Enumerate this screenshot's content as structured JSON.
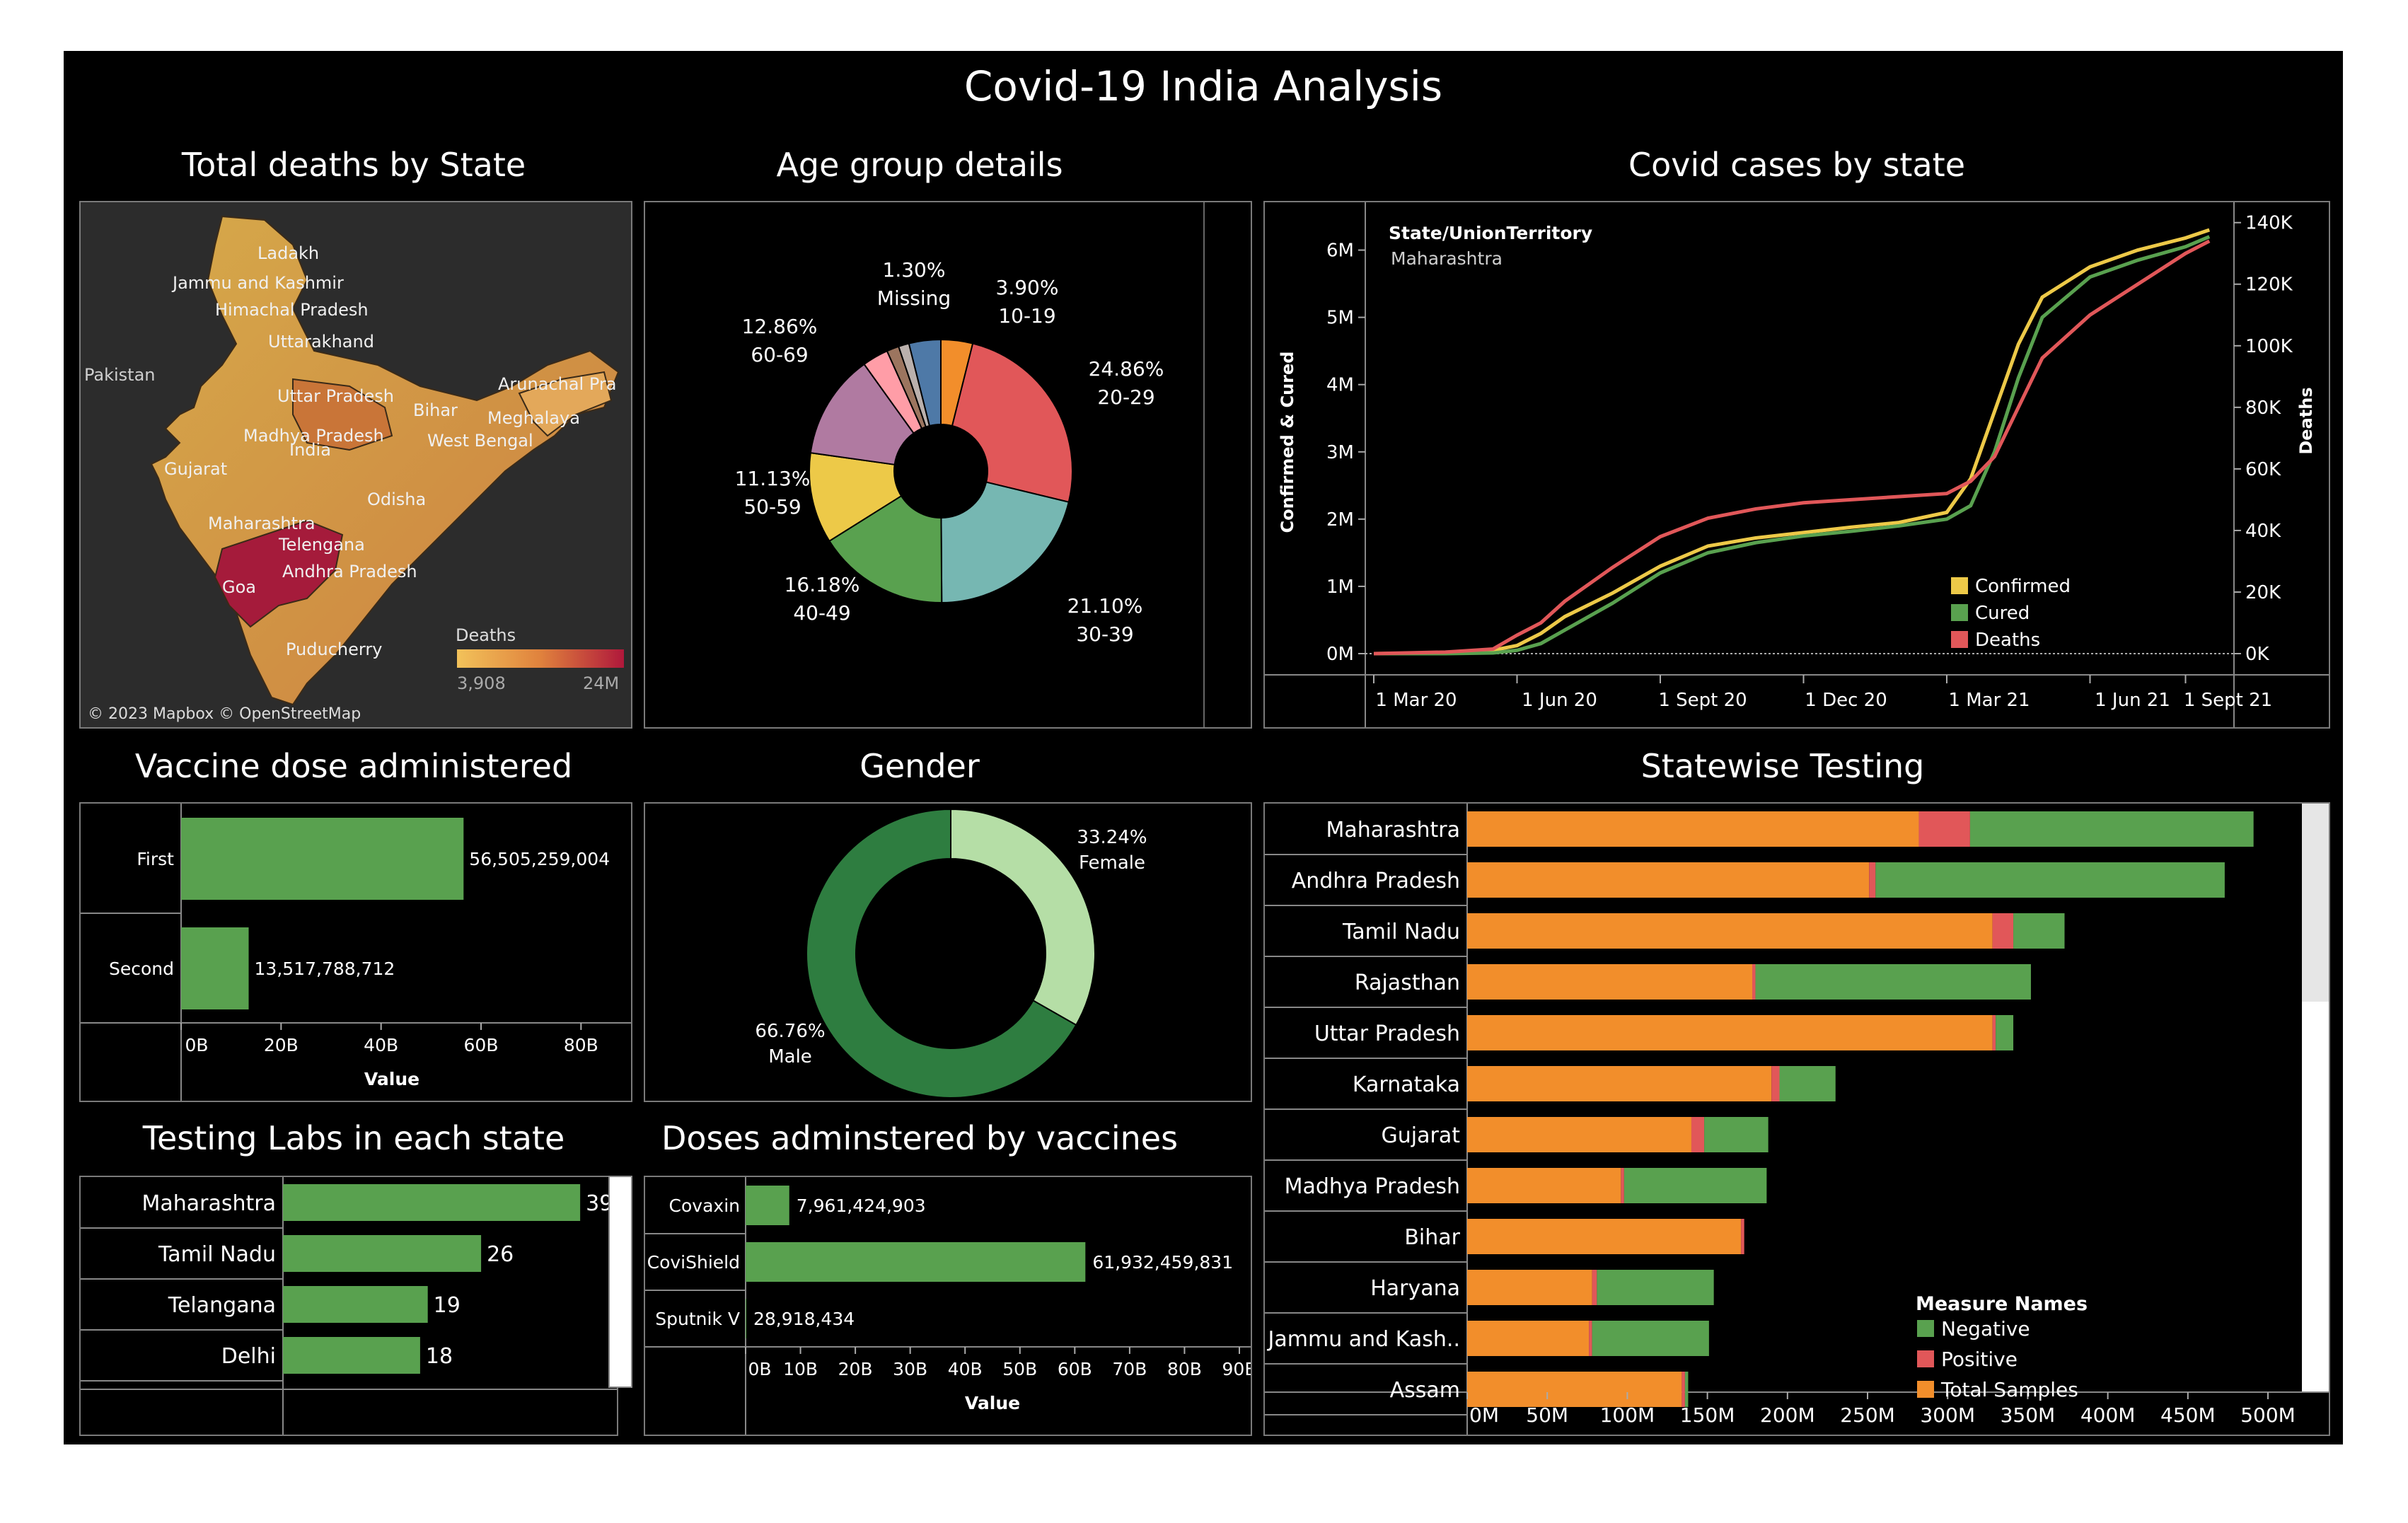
{
  "dashboard_title": "Covid-19 India Analysis",
  "titles": {
    "map": "Total deaths by State",
    "age": "Age group details",
    "cases": "Covid cases by state",
    "vaccine": "Vaccine dose administered",
    "gender": "Gender",
    "testing": "Statewise Testing",
    "labs": "Testing Labs in each state",
    "doses": "Doses adminstered by vaccines"
  },
  "map": {
    "states": [
      "Ladakh",
      "Jammu and Kashmir",
      "Himachal Pradesh",
      "Uttarakhand",
      "Uttar Pradesh",
      "Bihar",
      "Madhya Pradesh",
      "India",
      "Gujarat",
      "Maharashtra",
      "Telengana",
      "Andhra Pradesh",
      "Goa",
      "Puducherry",
      "Odisha",
      "West Bengal",
      "Meghalaya",
      "Arunachal Pra"
    ],
    "country_label": "Pakistan",
    "legend_title": "Deaths",
    "legend_min": "3,908",
    "legend_max": "24M",
    "credit": "© 2023 Mapbox © OpenStreetMap",
    "colors": {
      "low": "#f2c25a",
      "mid": "#e0823d",
      "high": "#b0183b"
    }
  },
  "cases_header": {
    "field": "State/UnionTerritory",
    "value": "Maharashtra"
  },
  "chart_data": [
    {
      "id": "age_group",
      "type": "pie",
      "labels": [
        "10-19",
        "20-29",
        "30-39",
        "40-49",
        "50-59",
        "60-69",
        "Missing"
      ],
      "slices": [
        {
          "value_label": "3.90%",
          "label": "10-19",
          "value": 3.9,
          "color": "#f28e2b"
        },
        {
          "value_label": "24.86%",
          "label": "20-29",
          "value": 24.86,
          "color": "#e15759"
        },
        {
          "value_label": "21.10%",
          "label": "30-39",
          "value": 21.1,
          "color": "#76b7b2"
        },
        {
          "value_label": "16.18%",
          "label": "40-49",
          "value": 16.18,
          "color": "#59a14f"
        },
        {
          "value_label": "11.13%",
          "label": "50-59",
          "value": 11.13,
          "color": "#edc948"
        },
        {
          "value_label": "12.86%",
          "label": "60-69",
          "value": 12.86,
          "color": "#b07aa1"
        },
        {
          "value_label": "",
          "label": "",
          "value": 3.2,
          "color": "#ff9da7"
        },
        {
          "value_label": "",
          "label": "",
          "value": 1.5,
          "color": "#9c755f"
        },
        {
          "value_label": "1.30%",
          "label": "Missing",
          "value": 1.3,
          "color": "#bab0ac"
        },
        {
          "value_label": "",
          "label": "",
          "value": 3.9,
          "color": "#4e79a7"
        }
      ]
    },
    {
      "id": "gender",
      "type": "pie",
      "slices": [
        {
          "value_label": "33.24%",
          "label": "Female",
          "value": 33.24,
          "color": "#b5dea6"
        },
        {
          "value_label": "66.76%",
          "label": "Male",
          "value": 66.76,
          "color": "#2e7d40"
        }
      ]
    },
    {
      "id": "cases",
      "type": "line",
      "x_ticks": [
        "1 Mar 20",
        "1 Jun 20",
        "1 Sept 20",
        "1 Dec 20",
        "1 Mar 21",
        "1 Jun 21",
        "1 Sept 21"
      ],
      "y_ticks": [
        "0M",
        "1M",
        "2M",
        "3M",
        "4M",
        "5M",
        "6M"
      ],
      "y2_ticks": [
        "0K",
        "20K",
        "40K",
        "60K",
        "80K",
        "100K",
        "120K",
        "140K"
      ],
      "ylabel": "Confirmed & Cured",
      "y2label": "Deaths",
      "ylim": [
        0,
        6.5
      ],
      "y2lim": [
        0,
        142
      ],
      "series": [
        {
          "name": "Confirmed",
          "color": "#edc948",
          "axis": "left",
          "x": [
            0,
            1.5,
            2.5,
            3,
            3.5,
            4,
            5,
            6,
            7,
            8,
            9,
            10,
            11,
            12,
            12.5,
            13,
            13.5,
            14,
            15,
            16,
            17,
            17.5
          ],
          "y": [
            0,
            0.01,
            0.05,
            0.12,
            0.3,
            0.55,
            0.9,
            1.3,
            1.6,
            1.72,
            1.8,
            1.88,
            1.95,
            2.1,
            2.6,
            3.6,
            4.6,
            5.3,
            5.75,
            6.0,
            6.18,
            6.3
          ]
        },
        {
          "name": "Cured",
          "color": "#59a14f",
          "axis": "left",
          "x": [
            0,
            1.5,
            2.5,
            3,
            3.5,
            4,
            5,
            6,
            7,
            8,
            9,
            10,
            11,
            12,
            12.5,
            13,
            13.5,
            14,
            15,
            16,
            17,
            17.5
          ],
          "y": [
            0,
            0.0,
            0.01,
            0.05,
            0.15,
            0.35,
            0.75,
            1.2,
            1.5,
            1.65,
            1.75,
            1.82,
            1.9,
            2.0,
            2.2,
            3.0,
            4.1,
            5.0,
            5.6,
            5.85,
            6.05,
            6.2
          ]
        },
        {
          "name": "Deaths",
          "color": "#e15759",
          "axis": "right",
          "x": [
            0,
            1.5,
            2.5,
            3,
            3.5,
            4,
            5,
            6,
            7,
            8,
            9,
            10,
            11,
            12,
            12.5,
            13,
            13.5,
            14,
            15,
            16,
            17,
            17.5
          ],
          "y": [
            0,
            0.5,
            1.5,
            6,
            10,
            17,
            28,
            38,
            44,
            47,
            49,
            50,
            51,
            52,
            56,
            64,
            80,
            96,
            110,
            120,
            130,
            134
          ]
        }
      ]
    },
    {
      "id": "vaccine",
      "type": "bar",
      "categories": [
        "First",
        "Second"
      ],
      "values": [
        56505259004,
        13517788712
      ],
      "value_labels": [
        "56,505,259,004",
        "13,517,788,712"
      ],
      "x_ticks": [
        "0B",
        "20B",
        "40B",
        "60B",
        "80B"
      ],
      "xlabel": "Value",
      "xlim": [
        0,
        90000000000
      ],
      "color": "#59a14f"
    },
    {
      "id": "labs",
      "type": "bar",
      "categories": [
        "Maharashtra",
        "Tamil Nadu",
        "Telangana",
        "Delhi"
      ],
      "values": [
        39,
        26,
        19,
        18
      ],
      "value_labels": [
        "39",
        "26",
        "19",
        "18"
      ],
      "xlim": [
        0,
        44
      ],
      "color": "#59a14f"
    },
    {
      "id": "doses",
      "type": "bar",
      "categories": [
        "Covaxin",
        "CoviShield",
        "Sputnik V"
      ],
      "values": [
        7961424903,
        61932459831,
        28918434
      ],
      "value_labels": [
        "7,961,424,903",
        "61,932,459,831",
        "28,918,434"
      ],
      "x_ticks": [
        "0B",
        "10B",
        "20B",
        "30B",
        "40B",
        "50B",
        "60B",
        "70B",
        "80B",
        "90B"
      ],
      "xlabel": "Value",
      "xlim": [
        0,
        90000000000
      ],
      "color": "#59a14f"
    },
    {
      "id": "testing",
      "type": "bar",
      "stacked": true,
      "categories": [
        "Maharashtra",
        "Andhra Pradesh",
        "Tamil Nadu",
        "Rajasthan",
        "Uttar Pradesh",
        "Karnataka",
        "Gujarat",
        "Madhya Pradesh",
        "Bihar",
        "Haryana",
        "Jammu and Kash..",
        "Assam"
      ],
      "series": [
        {
          "name": "Total Samples",
          "color": "#f28e2b",
          "values": [
            282,
            251,
            328,
            178,
            328,
            190,
            140,
            96,
            171,
            78,
            76,
            134
          ]
        },
        {
          "name": "Positive",
          "color": "#e15759",
          "values": [
            32,
            4,
            13,
            2,
            2,
            5,
            8,
            2,
            2,
            3,
            2,
            2
          ]
        },
        {
          "name": "Negative",
          "color": "#59a14f",
          "values": [
            177,
            218,
            32,
            172,
            11,
            35,
            40,
            89,
            0,
            73,
            73,
            2
          ]
        }
      ],
      "x_ticks": [
        "0M",
        "50M",
        "100M",
        "150M",
        "200M",
        "250M",
        "300M",
        "350M",
        "400M",
        "450M",
        "500M"
      ],
      "xlim": [
        0,
        515
      ],
      "legend_title": "Measure Names",
      "legend": [
        "Negative",
        "Positive",
        "Total Samples"
      ]
    }
  ]
}
